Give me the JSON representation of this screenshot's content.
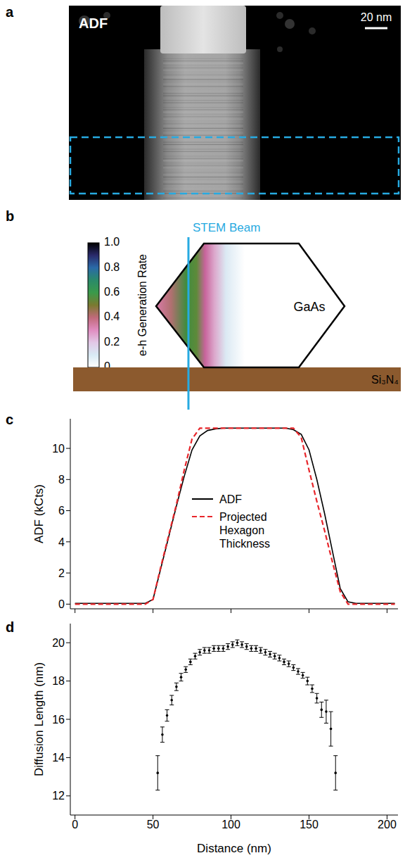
{
  "image_panel": {
    "label": "a",
    "title": "ADF",
    "scale_bar": "20 nm"
  },
  "diagram_panel": {
    "label": "b",
    "beam": "STEM Beam",
    "material": "GaAs",
    "substrate": "Si₃N₄",
    "colorbar": {
      "label": "e-h Generation Rate",
      "range": [
        0,
        1
      ],
      "ticks": [
        {
          "value": 1,
          "label": "1.0"
        },
        0.8,
        0.6,
        0.4,
        0.2,
        0
      ]
    }
  },
  "chart_data": [
    {
      "panel": "c",
      "type": "line",
      "x": [
        0,
        5,
        10,
        15,
        20,
        25,
        30,
        35,
        40,
        45,
        50,
        55,
        60,
        65,
        70,
        75,
        80,
        85,
        90,
        95,
        100,
        105,
        110,
        115,
        120,
        125,
        130,
        135,
        140,
        145,
        150,
        155,
        160,
        165,
        170,
        175,
        180,
        185,
        190,
        195,
        200,
        205
      ],
      "series": [
        {
          "name": "ADF",
          "color": "#000000",
          "line_style": "solid",
          "values": [
            0.05,
            0.05,
            0.05,
            0.05,
            0.05,
            0.05,
            0.05,
            0.05,
            0.05,
            0.05,
            0.3,
            2.3,
            4.3,
            6.3,
            8.2,
            9.9,
            10.8,
            11.15,
            11.25,
            11.3,
            11.3,
            11.3,
            11.3,
            11.3,
            11.3,
            11.3,
            11.3,
            11.3,
            11.2,
            10.9,
            9.9,
            8.0,
            5.8,
            3.4,
            1.0,
            0.15,
            0.05,
            0.05,
            0.05,
            0.05,
            0.05,
            0.05
          ]
        },
        {
          "name": "Projected Hexagon Thickness",
          "color": "#e8262b",
          "line_style": "dashed",
          "values": [
            0,
            0,
            0,
            0,
            0,
            0,
            0,
            0,
            0,
            0,
            0.3,
            2.4,
            4.4,
            6.4,
            8.6,
            10.6,
            11.3,
            11.3,
            11.3,
            11.3,
            11.3,
            11.3,
            11.3,
            11.3,
            11.3,
            11.3,
            11.3,
            11.3,
            11.3,
            10.7,
            8.6,
            6.6,
            4.7,
            2.7,
            0.8,
            0,
            0,
            0,
            0,
            0,
            0,
            0
          ]
        }
      ],
      "y_label": "ADF (kCts)",
      "xlim": [
        -3,
        207
      ],
      "xticks": [
        0,
        50,
        100,
        150,
        200
      ],
      "ylim": [
        -0.3,
        11.9
      ],
      "yticks": [
        0,
        2,
        4,
        6,
        8,
        10
      ],
      "tick_labels": "y",
      "legend": "center"
    },
    {
      "panel": "d",
      "type": "scatter",
      "x": [
        53,
        56,
        59,
        62,
        65,
        68,
        71,
        74,
        77,
        80,
        83,
        86,
        89,
        92,
        95,
        98,
        101,
        104,
        107,
        110,
        113,
        116,
        119,
        122,
        125,
        128,
        131,
        134,
        137,
        140,
        143,
        146,
        149,
        152,
        155,
        158,
        161,
        164,
        167
      ],
      "values": [
        13.2,
        15.2,
        16.2,
        17.0,
        17.7,
        18.2,
        18.6,
        19.0,
        19.3,
        19.5,
        19.6,
        19.6,
        19.7,
        19.7,
        19.7,
        19.8,
        19.9,
        20.0,
        19.9,
        19.8,
        19.7,
        19.7,
        19.6,
        19.5,
        19.4,
        19.3,
        19.2,
        19.0,
        18.9,
        18.7,
        18.5,
        18.3,
        18.0,
        17.6,
        17.1,
        16.5,
        16.4,
        15.5,
        13.2
      ],
      "error": [
        0.9,
        0.4,
        0.3,
        0.25,
        0.2,
        0.2,
        0.15,
        0.15,
        0.15,
        0.15,
        0.15,
        0.15,
        0.15,
        0.15,
        0.15,
        0.15,
        0.15,
        0.15,
        0.15,
        0.15,
        0.15,
        0.15,
        0.15,
        0.15,
        0.15,
        0.15,
        0.15,
        0.15,
        0.15,
        0.15,
        0.15,
        0.15,
        0.2,
        0.2,
        0.25,
        0.4,
        0.6,
        0.9,
        0.9
      ],
      "x_label": "Distance (nm)",
      "y_label": "Diffusion Length (nm)",
      "xlim": [
        -3,
        207
      ],
      "xticks": [
        0,
        50,
        100,
        150,
        200
      ],
      "ylim": [
        11,
        21
      ],
      "yticks": [
        12,
        14,
        16,
        18,
        20
      ],
      "marker": "circle",
      "color": "#000000"
    }
  ]
}
